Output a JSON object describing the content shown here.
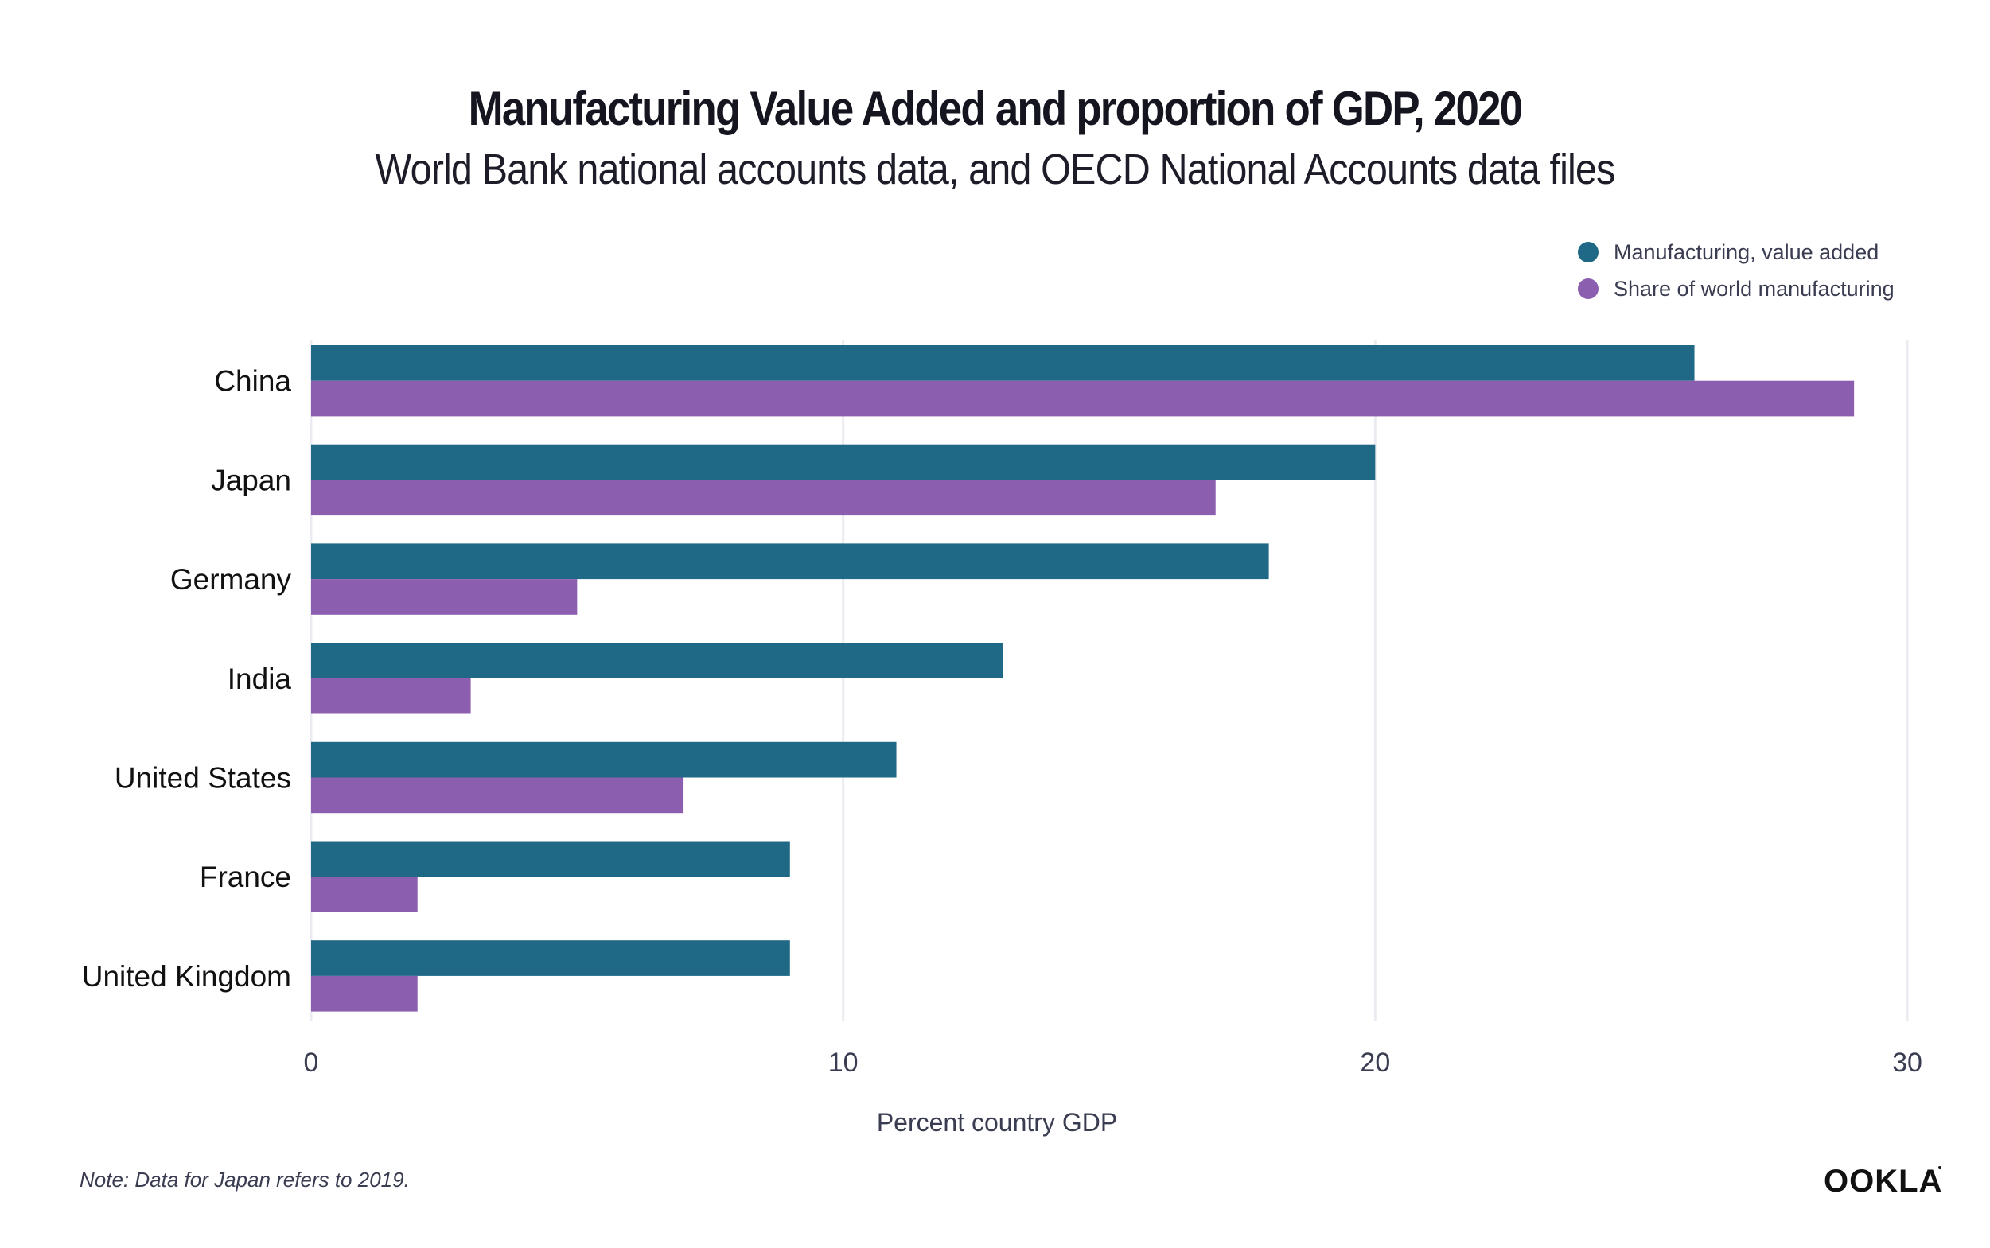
{
  "header": {
    "title": "Manufacturing Value Added and proportion of GDP, 2020",
    "subtitle": "World Bank national accounts data, and OECD National Accounts data files"
  },
  "legend": {
    "items": [
      {
        "label": "Manufacturing, value added",
        "color": "#1f6986"
      },
      {
        "label": "Share of world manufacturing",
        "color": "#8c5eb0"
      }
    ]
  },
  "footer": {
    "note": "Note: Data for Japan refers to 2019.",
    "logo": "OOKLA"
  },
  "chart_data": {
    "type": "bar",
    "orientation": "horizontal",
    "title": "Manufacturing Value Added and proportion of GDP, 2020",
    "subtitle": "World Bank national accounts data, and OECD National Accounts data files",
    "categories": [
      "China",
      "Japan",
      "Germany",
      "India",
      "United States",
      "France",
      "United Kingdom"
    ],
    "series": [
      {
        "name": "Manufacturing, value added",
        "color": "#1f6986",
        "values": [
          26,
          20,
          18,
          13,
          11,
          9,
          9
        ]
      },
      {
        "name": "Share of world manufacturing",
        "color": "#8c5eb0",
        "values": [
          29,
          17,
          5,
          3,
          7,
          2,
          2
        ]
      }
    ],
    "xlabel": "Percent country GDP",
    "ylabel": "",
    "xlim": [
      0,
      30
    ],
    "xticks": [
      0,
      10,
      20,
      30
    ],
    "xtick_labels": [
      "0",
      "10",
      "20",
      "30"
    ],
    "grid": "vertical",
    "legend_position": "top-right",
    "note": "Note: Data for Japan refers to 2019."
  }
}
